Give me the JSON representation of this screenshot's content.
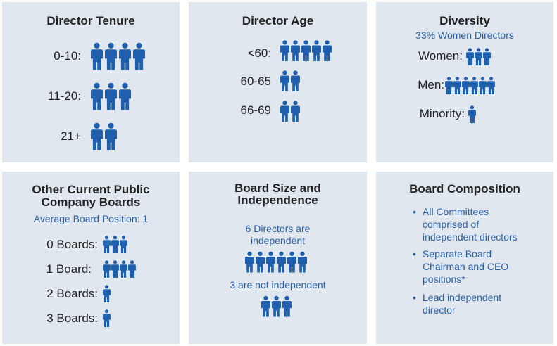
{
  "colors": {
    "panel": "#e1e7ef",
    "accent": "#1f5fad",
    "title": "#222222",
    "subtitle": "#2a5ea6"
  },
  "icon": "person-icon",
  "tenure": {
    "title": "Director Tenure",
    "rows": [
      {
        "label": "0-10:",
        "count": 4
      },
      {
        "label": "11-20:",
        "count": 3
      },
      {
        "label": "21+",
        "count": 2
      }
    ]
  },
  "age": {
    "title": "Director Age",
    "rows": [
      {
        "label": "<60:",
        "count": 5
      },
      {
        "label": "60-65",
        "count": 2
      },
      {
        "label": "66-69",
        "count": 2
      }
    ]
  },
  "diversity": {
    "title": "Diversity",
    "subtitle": "33% Women Directors",
    "rows": [
      {
        "label": "Women:",
        "count": 3
      },
      {
        "label": "Men:",
        "count": 6
      },
      {
        "label": "Minority:",
        "count": 1
      }
    ]
  },
  "boards": {
    "title_line1": "Other Current Public",
    "title_line2": "Company Boards",
    "subtitle": "Average Board Position: 1",
    "rows": [
      {
        "label": "0 Boards:",
        "count": 3
      },
      {
        "label": "1 Board:",
        "count": 4
      },
      {
        "label": "2 Boards:",
        "count": 1
      },
      {
        "label": "3 Boards:",
        "count": 1
      }
    ]
  },
  "size": {
    "title_line1": "Board Size and",
    "title_line2": "Independence",
    "independent_line1": "6 Directors are",
    "independent_line2": "independent",
    "independent_count": 6,
    "not_independent": "3 are not independent",
    "not_independent_count": 3
  },
  "composition": {
    "title": "Board Composition",
    "bullet": "•",
    "items": [
      {
        "lines": [
          "All Committees",
          "comprised of",
          "independent directors"
        ]
      },
      {
        "lines": [
          "Separate Board",
          "Chairman and CEO",
          "positions*"
        ]
      },
      {
        "lines": [
          "Lead independent",
          "director"
        ]
      }
    ]
  }
}
